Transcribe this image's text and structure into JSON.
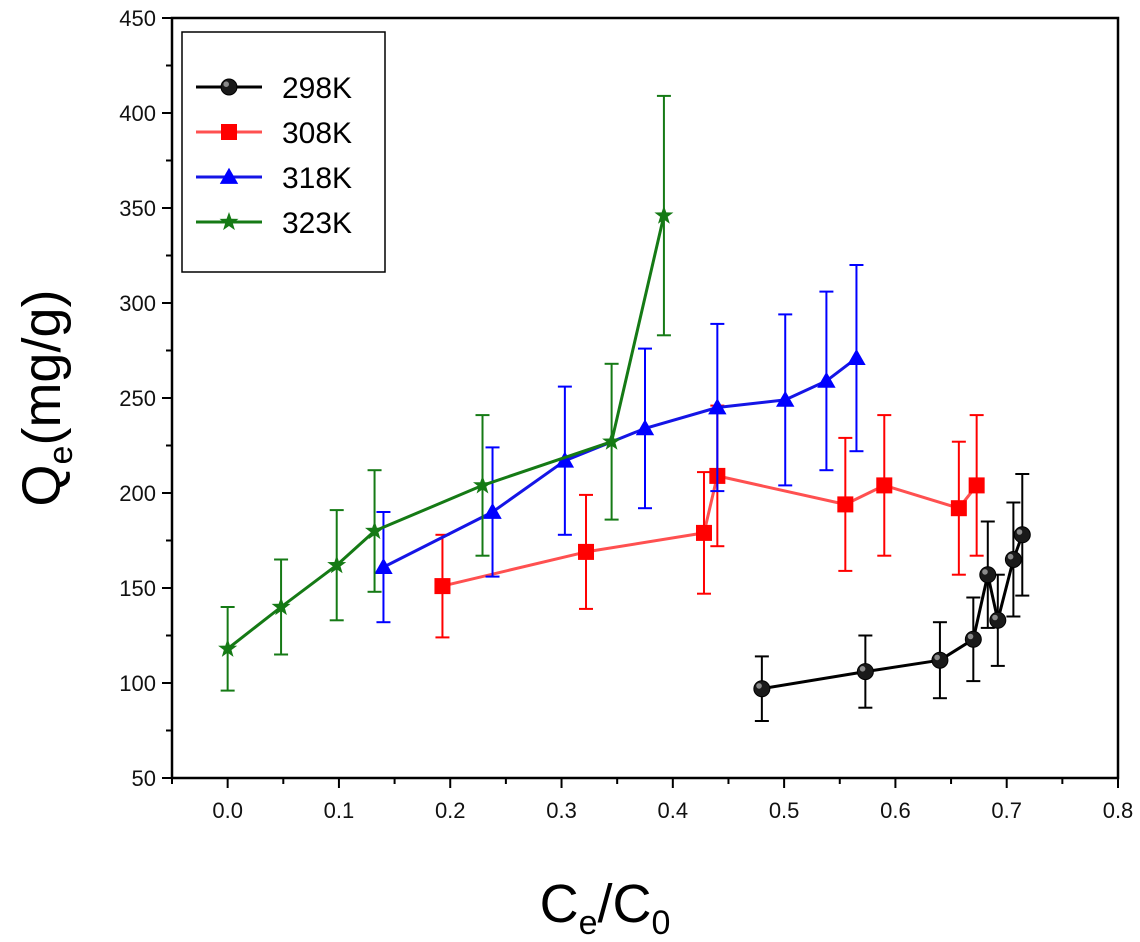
{
  "chart_data": {
    "type": "scatter",
    "xlabel": {
      "main": "C",
      "sub1": "e",
      "mid": "/C",
      "sub2": "0"
    },
    "ylabel": {
      "main": "Q",
      "sub": "e",
      "rest": "(mg/g)"
    },
    "xlim": [
      -0.05,
      0.8
    ],
    "ylim": [
      50,
      450
    ],
    "xticks": [
      0.0,
      0.1,
      0.2,
      0.3,
      0.4,
      0.5,
      0.6,
      0.7,
      0.8
    ],
    "xtick_labels": [
      "0.0",
      "0.1",
      "0.2",
      "0.3",
      "0.4",
      "0.5",
      "0.6",
      "0.7",
      "0.8"
    ],
    "yticks": [
      50,
      100,
      150,
      200,
      250,
      300,
      350,
      400,
      450
    ],
    "ytick_labels": [
      "50",
      "100",
      "150",
      "200",
      "250",
      "300",
      "350",
      "400",
      "450"
    ],
    "legend_position": "top-left",
    "series": [
      {
        "name": "298K",
        "color": "#000000",
        "line_color": "#000000",
        "marker": "sphere",
        "x": [
          0.48,
          0.573,
          0.64,
          0.67,
          0.683,
          0.692,
          0.706,
          0.714
        ],
        "y": [
          97,
          106,
          112,
          123,
          157,
          133,
          165,
          178
        ],
        "err": [
          17,
          19,
          20,
          22,
          28,
          24,
          30,
          32
        ]
      },
      {
        "name": "308K",
        "color": "#ff0000",
        "line_color": "#ff5050",
        "marker": "square",
        "x": [
          0.193,
          0.322,
          0.428,
          0.44,
          0.555,
          0.59,
          0.657,
          0.673
        ],
        "y": [
          151,
          169,
          179,
          209,
          194,
          204,
          192,
          204
        ],
        "err": [
          27,
          30,
          32,
          37,
          35,
          37,
          35,
          37
        ]
      },
      {
        "name": "318K",
        "color": "#0000ff",
        "line_color": "#1515e6",
        "marker": "triangle",
        "x": [
          0.14,
          0.238,
          0.303,
          0.375,
          0.44,
          0.501,
          0.538,
          0.565
        ],
        "y": [
          161,
          190,
          217,
          234,
          245,
          249,
          259,
          271
        ],
        "err": [
          29,
          34,
          39,
          42,
          44,
          45,
          47,
          49
        ]
      },
      {
        "name": "323K",
        "color": "#157a15",
        "line_color": "#157a15",
        "marker": "star",
        "x": [
          0.0,
          0.048,
          0.098,
          0.132,
          0.229,
          0.345,
          0.392
        ],
        "y": [
          118,
          140,
          162,
          180,
          204,
          227,
          346
        ],
        "err": [
          22,
          25,
          29,
          32,
          37,
          41,
          63
        ]
      }
    ]
  }
}
